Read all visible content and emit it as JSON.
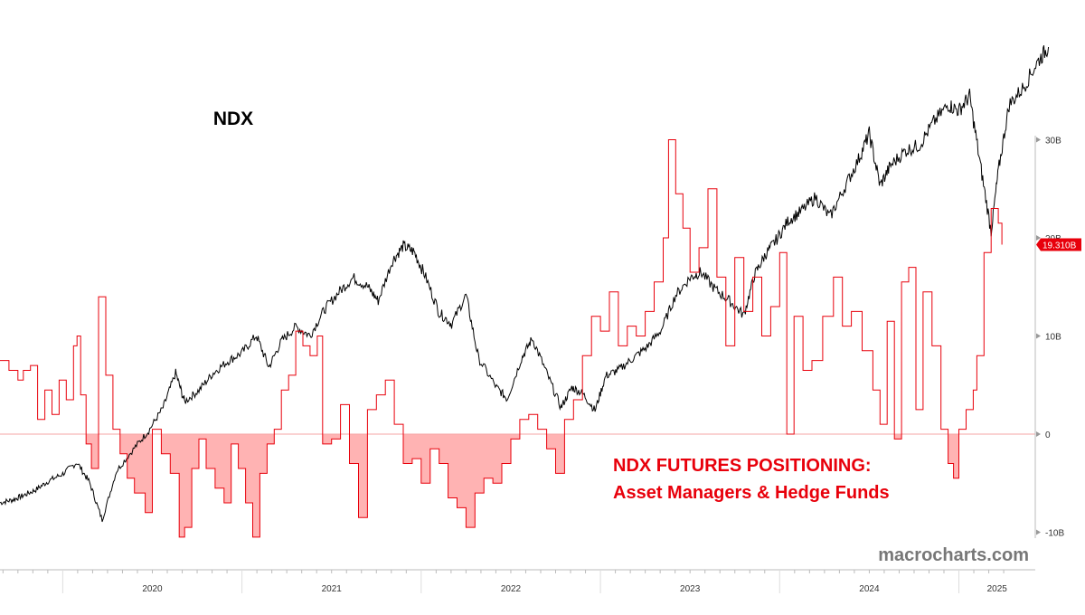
{
  "chart_data": {
    "type": "line",
    "title": "NDX",
    "annotation_line1": "NDX FUTURES POSITIONING:",
    "annotation_line2": "Asset Managers & Hedge Funds",
    "watermark": "macrocharts.com",
    "x_years": [
      "2020",
      "2021",
      "2022",
      "2023",
      "2024",
      "2025"
    ],
    "xlim": [
      2019.65,
      2025.3
    ],
    "y_right_axis": {
      "ticks": [
        {
          "value": 30,
          "label": "30B"
        },
        {
          "value": 20,
          "label": "20B"
        },
        {
          "value": 10,
          "label": "10B"
        },
        {
          "value": 0,
          "label": "0"
        },
        {
          "value": -10,
          "label": "-10B"
        }
      ],
      "ylim": [
        -10,
        30
      ]
    },
    "last_value_label": "19.310B",
    "colors": {
      "ndx_line": "#000000",
      "positioning_line": "#e8000b",
      "negative_fill": "#ffb3b3",
      "zero_line": "#f4a6a6",
      "annotation": "#e8000b",
      "watermark": "#777777",
      "axis": "#bbbbbb"
    },
    "series": [
      {
        "name": "NDX",
        "axis": "left-unlabeled",
        "points": [
          [
            2019.65,
            7700
          ],
          [
            2019.72,
            7800
          ],
          [
            2019.78,
            7950
          ],
          [
            2019.85,
            8150
          ],
          [
            2019.92,
            8450
          ],
          [
            2020.0,
            8700
          ],
          [
            2020.08,
            9100
          ],
          [
            2020.15,
            8400
          ],
          [
            2020.22,
            7100
          ],
          [
            2020.3,
            8800
          ],
          [
            2020.4,
            9600
          ],
          [
            2020.48,
            10200
          ],
          [
            2020.56,
            11000
          ],
          [
            2020.63,
            12200
          ],
          [
            2020.68,
            11200
          ],
          [
            2020.76,
            11600
          ],
          [
            2020.84,
            12200
          ],
          [
            2020.92,
            12600
          ],
          [
            2021.0,
            12900
          ],
          [
            2021.08,
            13500
          ],
          [
            2021.15,
            12400
          ],
          [
            2021.22,
            13300
          ],
          [
            2021.3,
            13800
          ],
          [
            2021.38,
            13500
          ],
          [
            2021.46,
            14400
          ],
          [
            2021.54,
            15000
          ],
          [
            2021.62,
            15500
          ],
          [
            2021.7,
            15200
          ],
          [
            2021.76,
            14700
          ],
          [
            2021.84,
            16100
          ],
          [
            2021.9,
            16600
          ],
          [
            2021.96,
            16400
          ],
          [
            2022.02,
            15600
          ],
          [
            2022.1,
            14300
          ],
          [
            2022.17,
            13900
          ],
          [
            2022.25,
            14900
          ],
          [
            2022.32,
            12700
          ],
          [
            2022.42,
            11700
          ],
          [
            2022.48,
            11300
          ],
          [
            2022.56,
            12700
          ],
          [
            2022.62,
            13400
          ],
          [
            2022.7,
            12200
          ],
          [
            2022.78,
            11000
          ],
          [
            2022.84,
            11700
          ],
          [
            2022.9,
            11500
          ],
          [
            2022.97,
            10900
          ],
          [
            2023.03,
            12100
          ],
          [
            2023.1,
            12300
          ],
          [
            2023.18,
            12700
          ],
          [
            2023.26,
            13100
          ],
          [
            2023.34,
            13700
          ],
          [
            2023.42,
            14900
          ],
          [
            2023.5,
            15500
          ],
          [
            2023.56,
            15700
          ],
          [
            2023.64,
            15100
          ],
          [
            2023.72,
            14700
          ],
          [
            2023.8,
            14200
          ],
          [
            2023.86,
            15600
          ],
          [
            2023.92,
            16300
          ],
          [
            2023.98,
            16800
          ],
          [
            2024.05,
            17500
          ],
          [
            2024.12,
            17800
          ],
          [
            2024.2,
            18300
          ],
          [
            2024.28,
            17600
          ],
          [
            2024.36,
            18600
          ],
          [
            2024.44,
            19600
          ],
          [
            2024.5,
            20500
          ],
          [
            2024.56,
            18700
          ],
          [
            2024.62,
            19400
          ],
          [
            2024.7,
            19900
          ],
          [
            2024.78,
            20100
          ],
          [
            2024.86,
            20900
          ],
          [
            2024.94,
            21500
          ],
          [
            2025.0,
            21300
          ],
          [
            2025.06,
            21800
          ],
          [
            2025.12,
            19400
          ],
          [
            2025.18,
            17100
          ],
          [
            2025.22,
            19200
          ],
          [
            2025.28,
            21500
          ],
          [
            2025.36,
            22100
          ],
          [
            2025.44,
            23000
          ],
          [
            2025.5,
            23500
          ]
        ]
      },
      {
        "name": "NDX FUTURES POSITIONING",
        "axis": "right",
        "points": [
          [
            2019.65,
            7.5
          ],
          [
            2019.7,
            6.5
          ],
          [
            2019.75,
            5.5
          ],
          [
            2019.78,
            6.5
          ],
          [
            2019.82,
            7.0
          ],
          [
            2019.86,
            1.5
          ],
          [
            2019.9,
            4.5
          ],
          [
            2019.94,
            2.0
          ],
          [
            2019.98,
            5.5
          ],
          [
            2020.02,
            3.5
          ],
          [
            2020.06,
            9.0
          ],
          [
            2020.08,
            10.0
          ],
          [
            2020.1,
            4.0
          ],
          [
            2020.13,
            -1.0
          ],
          [
            2020.16,
            -3.5
          ],
          [
            2020.2,
            14.0
          ],
          [
            2020.24,
            6.0
          ],
          [
            2020.28,
            0.5
          ],
          [
            2020.32,
            -2.0
          ],
          [
            2020.36,
            -4.5
          ],
          [
            2020.4,
            -6.0
          ],
          [
            2020.46,
            -8.0
          ],
          [
            2020.5,
            0.5
          ],
          [
            2020.55,
            -2.0
          ],
          [
            2020.6,
            -4.0
          ],
          [
            2020.65,
            -10.5
          ],
          [
            2020.68,
            -9.5
          ],
          [
            2020.72,
            -3.5
          ],
          [
            2020.76,
            -0.5
          ],
          [
            2020.8,
            -3.5
          ],
          [
            2020.85,
            -5.5
          ],
          [
            2020.9,
            -7.0
          ],
          [
            2020.94,
            -1.0
          ],
          [
            2020.98,
            -3.5
          ],
          [
            2021.02,
            -7.0
          ],
          [
            2021.06,
            -10.5
          ],
          [
            2021.1,
            -4.0
          ],
          [
            2021.14,
            -1.0
          ],
          [
            2021.18,
            0.5
          ],
          [
            2021.22,
            4.5
          ],
          [
            2021.26,
            6.0
          ],
          [
            2021.3,
            10.5
          ],
          [
            2021.34,
            9.0
          ],
          [
            2021.38,
            8.0
          ],
          [
            2021.42,
            10.0
          ],
          [
            2021.45,
            -1.0
          ],
          [
            2021.5,
            -0.5
          ],
          [
            2021.55,
            3.0
          ],
          [
            2021.6,
            -3.0
          ],
          [
            2021.65,
            -8.5
          ],
          [
            2021.7,
            2.5
          ],
          [
            2021.75,
            4.0
          ],
          [
            2021.8,
            5.5
          ],
          [
            2021.85,
            1.0
          ],
          [
            2021.9,
            -3.0
          ],
          [
            2021.95,
            -2.5
          ],
          [
            2022.0,
            -5.0
          ],
          [
            2022.05,
            -1.5
          ],
          [
            2022.1,
            -3.0
          ],
          [
            2022.15,
            -6.5
          ],
          [
            2022.2,
            -7.5
          ],
          [
            2022.25,
            -9.5
          ],
          [
            2022.3,
            -6.0
          ],
          [
            2022.35,
            -4.5
          ],
          [
            2022.4,
            -5.0
          ],
          [
            2022.45,
            -3.0
          ],
          [
            2022.5,
            -0.5
          ],
          [
            2022.55,
            1.5
          ],
          [
            2022.6,
            2.0
          ],
          [
            2022.65,
            0.5
          ],
          [
            2022.7,
            -1.5
          ],
          [
            2022.75,
            -4.0
          ],
          [
            2022.8,
            1.5
          ],
          [
            2022.85,
            3.5
          ],
          [
            2022.9,
            8.0
          ],
          [
            2022.95,
            12.0
          ],
          [
            2023.0,
            10.5
          ],
          [
            2023.05,
            14.5
          ],
          [
            2023.1,
            9.0
          ],
          [
            2023.15,
            11.0
          ],
          [
            2023.2,
            10.0
          ],
          [
            2023.25,
            12.5
          ],
          [
            2023.3,
            15.5
          ],
          [
            2023.35,
            20.0
          ],
          [
            2023.38,
            30.0
          ],
          [
            2023.42,
            24.5
          ],
          [
            2023.46,
            21.0
          ],
          [
            2023.5,
            16.5
          ],
          [
            2023.55,
            19.0
          ],
          [
            2023.6,
            25.0
          ],
          [
            2023.65,
            16.0
          ],
          [
            2023.7,
            9.0
          ],
          [
            2023.75,
            18.0
          ],
          [
            2023.8,
            12.5
          ],
          [
            2023.85,
            16.0
          ],
          [
            2023.9,
            10.0
          ],
          [
            2023.95,
            13.0
          ],
          [
            2024.0,
            18.5
          ],
          [
            2024.04,
            0.0
          ],
          [
            2024.08,
            12.0
          ],
          [
            2024.13,
            6.5
          ],
          [
            2024.18,
            7.5
          ],
          [
            2024.24,
            12.0
          ],
          [
            2024.3,
            16.0
          ],
          [
            2024.35,
            11.0
          ],
          [
            2024.4,
            12.5
          ],
          [
            2024.46,
            8.5
          ],
          [
            2024.52,
            4.5
          ],
          [
            2024.56,
            1.0
          ],
          [
            2024.6,
            11.5
          ],
          [
            2024.64,
            -0.5
          ],
          [
            2024.68,
            15.5
          ],
          [
            2024.72,
            17.0
          ],
          [
            2024.76,
            2.5
          ],
          [
            2024.8,
            14.5
          ],
          [
            2024.85,
            9.0
          ],
          [
            2024.9,
            0.5
          ],
          [
            2024.94,
            -3.0
          ],
          [
            2024.97,
            -4.5
          ],
          [
            2025.0,
            0.5
          ],
          [
            2025.04,
            2.5
          ],
          [
            2025.08,
            4.5
          ],
          [
            2025.1,
            8.0
          ],
          [
            2025.14,
            18.5
          ],
          [
            2025.18,
            23.0
          ],
          [
            2025.22,
            21.5
          ],
          [
            2025.24,
            19.31
          ]
        ]
      }
    ]
  }
}
